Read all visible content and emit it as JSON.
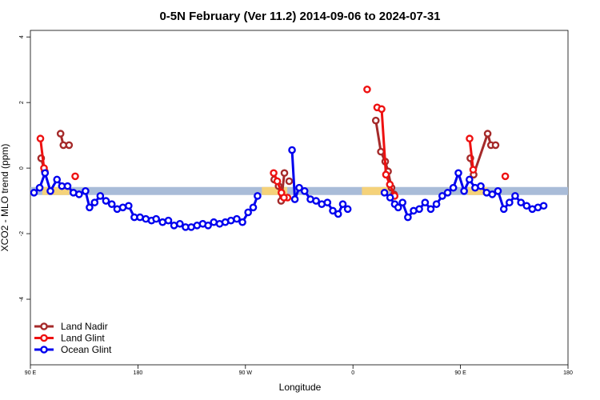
{
  "chart_data": {
    "type": "line",
    "title": "0-5N February (Ver 11.2)   2014-09-06 to 2024-07-31",
    "xlabel": "Longitude",
    "ylabel": "XCO2 - MLO trend (ppm)",
    "xlim": [
      0,
      360
    ],
    "ylim": [
      -6,
      4.2
    ],
    "x_ticks": [
      {
        "x": 0,
        "label": "90 E"
      },
      {
        "x": 72,
        "label": "180"
      },
      {
        "x": 144,
        "label": "90 W"
      },
      {
        "x": 216,
        "label": "0"
      },
      {
        "x": 288,
        "label": "90 E"
      },
      {
        "x": 360,
        "label": "180"
      }
    ],
    "y_ticks": [
      {
        "y": 4,
        "label": "4"
      },
      {
        "y": 2,
        "label": "2"
      },
      {
        "y": 0,
        "label": "0"
      },
      {
        "y": -2,
        "label": "-2"
      },
      {
        "y": -4,
        "label": "-4"
      }
    ],
    "grid": false,
    "legend_position": "bottom-left",
    "band": {
      "y": -0.7,
      "color": "#a9bcd8",
      "land_color": "#f5d27a",
      "land_ranges": [
        [
          8,
          26
        ],
        [
          155,
          172
        ],
        [
          222,
          240
        ],
        [
          293,
          306
        ]
      ]
    },
    "series": [
      {
        "name": "Land Nadir",
        "color": "#a52a2a",
        "segments": [
          [
            [
              7.2,
              0.3
            ],
            [
              9.6,
              -0.1
            ]
          ],
          [
            [
              20.2,
              1.05
            ],
            [
              22.1,
              0.7
            ],
            [
              25.9,
              0.7
            ]
          ],
          [
            [
              163.3,
              -0.35
            ],
            [
              166.2,
              -0.55
            ],
            [
              167.9,
              -1.0
            ],
            [
              170.1,
              -0.15
            ]
          ],
          [
            [
              173.3,
              -0.4
            ]
          ],
          [
            [
              231.3,
              1.45
            ],
            [
              234.7,
              0.5
            ],
            [
              237.6,
              0.2
            ],
            [
              239.5,
              -0.1
            ],
            [
              241.8,
              -0.6
            ],
            [
              243.5,
              -0.8
            ]
          ],
          [
            [
              294.6,
              0.3
            ],
            [
              296.8,
              -0.2
            ],
            [
              306.2,
              1.05
            ],
            [
              308.4,
              0.7
            ],
            [
              311.5,
              0.7
            ]
          ]
        ]
      },
      {
        "name": "Land Glint",
        "color": "#ee1111",
        "segments": [
          [
            [
              6.7,
              0.9
            ],
            [
              9.1,
              0.0
            ]
          ],
          [
            [
              30.0,
              -0.25
            ]
          ],
          [
            [
              162.9,
              -0.15
            ],
            [
              165.3,
              -0.4
            ],
            [
              168.1,
              -0.75
            ],
            [
              172.2,
              -0.9
            ],
            [
              169.8,
              -0.9
            ]
          ],
          [
            [
              225.5,
              2.4
            ]
          ],
          [
            [
              232.2,
              1.85
            ],
            [
              235.2,
              1.8
            ],
            [
              238.1,
              -0.2
            ],
            [
              240.7,
              -0.5
            ],
            [
              243.9,
              -0.85
            ]
          ],
          [
            [
              294.1,
              0.9
            ],
            [
              296.5,
              -0.05
            ]
          ],
          [
            [
              318.0,
              -0.25
            ]
          ]
        ]
      },
      {
        "name": "Ocean Glint",
        "color": "#0000ee",
        "segments": [
          [
            [
              2.4,
              -0.75
            ],
            [
              6.2,
              -0.6
            ],
            [
              9.8,
              -0.15
            ],
            [
              13.4,
              -0.7
            ],
            [
              17.8,
              -0.35
            ],
            [
              21.1,
              -0.55
            ],
            [
              24.9,
              -0.55
            ],
            [
              28.8,
              -0.75
            ],
            [
              32.6,
              -0.8
            ],
            [
              36.9,
              -0.7
            ],
            [
              39.6,
              -1.2
            ],
            [
              43.0,
              -1.05
            ],
            [
              46.8,
              -0.85
            ],
            [
              50.6,
              -1.0
            ],
            [
              54.5,
              -1.1
            ],
            [
              58.1,
              -1.25
            ],
            [
              61.9,
              -1.2
            ],
            [
              65.8,
              -1.15
            ],
            [
              69.6,
              -1.5
            ],
            [
              73.4,
              -1.5
            ],
            [
              77.3,
              -1.55
            ],
            [
              81.1,
              -1.6
            ],
            [
              84.2,
              -1.55
            ],
            [
              88.5,
              -1.65
            ],
            [
              92.4,
              -1.6
            ],
            [
              96.2,
              -1.75
            ],
            [
              100.1,
              -1.7
            ],
            [
              103.9,
              -1.8
            ],
            [
              107.7,
              -1.8
            ],
            [
              111.6,
              -1.75
            ],
            [
              115.4,
              -1.7
            ],
            [
              119.0,
              -1.75
            ],
            [
              122.8,
              -1.65
            ],
            [
              126.7,
              -1.7
            ],
            [
              130.5,
              -1.65
            ],
            [
              134.3,
              -1.6
            ],
            [
              138.2,
              -1.55
            ],
            [
              142.0,
              -1.65
            ],
            [
              145.8,
              -1.35
            ],
            [
              149.2,
              -1.2
            ],
            [
              152.1,
              -0.85
            ]
          ],
          [
            [
              175.2,
              0.55
            ],
            [
              177.1,
              -0.95
            ],
            [
              180.0,
              -0.6
            ],
            [
              183.6,
              -0.7
            ],
            [
              187.5,
              -0.95
            ],
            [
              191.3,
              -1.0
            ],
            [
              195.1,
              -1.1
            ],
            [
              198.9,
              -1.05
            ],
            [
              202.5,
              -1.3
            ],
            [
              206.1,
              -1.4
            ],
            [
              209.2,
              -1.1
            ],
            [
              212.5,
              -1.25
            ]
          ],
          [
            [
              237.1,
              -0.75
            ],
            [
              240.9,
              -0.9
            ],
            [
              244.0,
              -1.1
            ],
            [
              246.3,
              -1.2
            ],
            [
              249.2,
              -1.05
            ],
            [
              252.8,
              -1.5
            ],
            [
              256.6,
              -1.3
            ],
            [
              260.4,
              -1.25
            ],
            [
              264.3,
              -1.05
            ],
            [
              268.1,
              -1.25
            ],
            [
              271.9,
              -1.1
            ],
            [
              275.8,
              -0.85
            ],
            [
              279.4,
              -0.75
            ],
            [
              283.2,
              -0.6
            ],
            [
              286.6,
              -0.15
            ],
            [
              290.4,
              -0.7
            ],
            [
              294.0,
              -0.35
            ],
            [
              297.8,
              -0.6
            ],
            [
              301.6,
              -0.55
            ],
            [
              305.5,
              -0.75
            ],
            [
              309.3,
              -0.8
            ],
            [
              313.1,
              -0.7
            ],
            [
              317.0,
              -1.25
            ],
            [
              320.8,
              -1.05
            ],
            [
              324.6,
              -0.85
            ],
            [
              328.5,
              -1.05
            ],
            [
              332.3,
              -1.15
            ],
            [
              336.1,
              -1.25
            ],
            [
              339.9,
              -1.2
            ],
            [
              343.7,
              -1.15
            ]
          ]
        ]
      }
    ]
  }
}
